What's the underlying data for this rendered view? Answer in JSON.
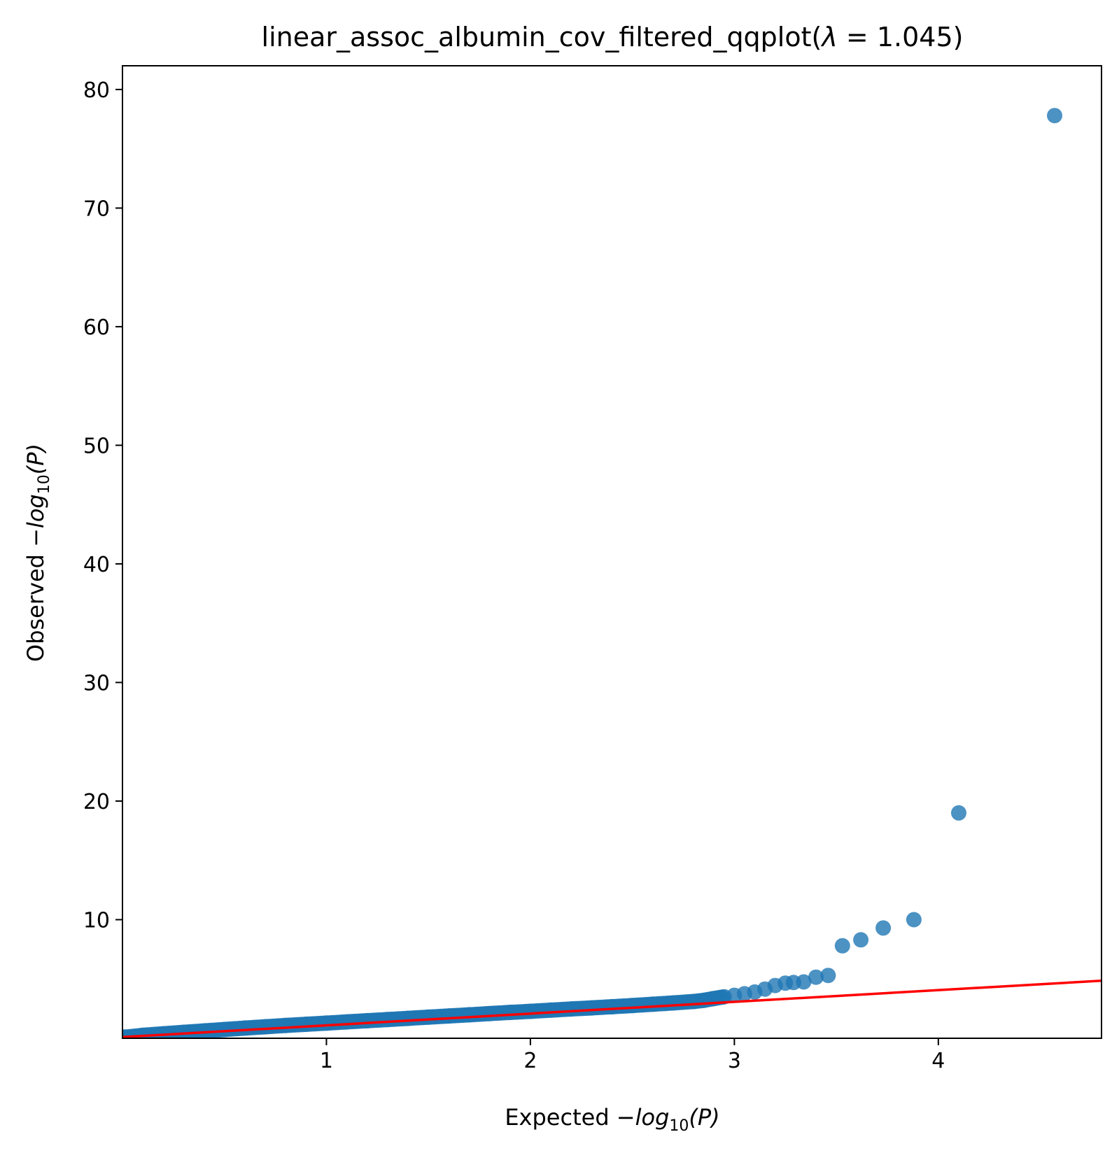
{
  "chart_data": {
    "type": "scatter",
    "title": "linear_assoc_albumin_cov_filtered_qqplot(λ = 1.045)",
    "title_main": "linear_assoc_albumin_cov_filtered_qqplot(",
    "title_lambda": "λ",
    "title_eq": " = 1.045)",
    "xlabel": "Expected −log₁₀(P)",
    "xlabel_prefix": "Expected −",
    "ylabel": "Observed −log₁₀(P)",
    "ylabel_prefix": "Observed −",
    "log_text": "log",
    "log_sub": "10",
    "log_arg": "(P)",
    "xlim": [
      0,
      4.8
    ],
    "ylim": [
      0,
      82
    ],
    "xticks": [
      1,
      2,
      3,
      4
    ],
    "xtick_labels": [
      "1",
      "2",
      "3",
      "4"
    ],
    "yticks": [
      10,
      20,
      30,
      40,
      50,
      60,
      70,
      80
    ],
    "ytick_labels": [
      "10",
      "20",
      "30",
      "40",
      "50",
      "60",
      "70",
      "80"
    ],
    "grid": false,
    "point_color": "#1f77b4",
    "line_color": "#ff0000",
    "series": [
      {
        "kind": "points",
        "x": [
          0.02,
          0.1,
          0.2,
          0.3,
          0.4,
          0.5,
          0.6,
          0.7,
          0.8,
          0.9,
          1.0,
          1.1,
          1.2,
          1.3,
          1.4,
          1.5,
          1.6,
          1.7,
          1.8,
          1.9,
          2.0,
          2.1,
          2.2,
          2.3,
          2.4,
          2.5,
          2.6,
          2.7,
          2.8,
          2.85,
          2.9,
          2.95,
          3.0,
          3.05,
          3.1,
          3.15,
          3.2,
          3.25,
          3.29,
          3.34,
          3.4,
          3.46,
          3.53,
          3.62,
          3.73,
          3.88,
          4.1,
          4.57
        ],
        "y": [
          0.1,
          0.25,
          0.38,
          0.5,
          0.62,
          0.74,
          0.86,
          0.97,
          1.08,
          1.18,
          1.28,
          1.38,
          1.48,
          1.58,
          1.68,
          1.78,
          1.88,
          1.98,
          2.08,
          2.18,
          2.27,
          2.37,
          2.47,
          2.56,
          2.66,
          2.76,
          2.87,
          2.98,
          3.1,
          3.2,
          3.35,
          3.5,
          3.62,
          3.75,
          3.9,
          4.15,
          4.45,
          4.65,
          4.7,
          4.75,
          5.15,
          5.3,
          7.8,
          8.3,
          9.3,
          10.0,
          19.0,
          77.8
        ]
      },
      {
        "kind": "line",
        "x": [
          0,
          4.8
        ],
        "y": [
          0.1,
          4.85
        ]
      }
    ]
  }
}
